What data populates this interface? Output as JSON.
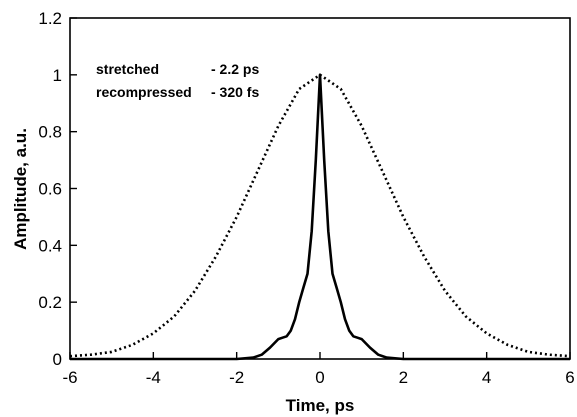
{
  "chart_data": {
    "type": "line",
    "title": "",
    "xlabel": "Time, ps",
    "ylabel": "Amplitude, a.u.",
    "xlim": [
      -6,
      6
    ],
    "ylim": [
      0,
      1.2
    ],
    "x_ticks": [
      -6,
      -4,
      -2,
      0,
      2,
      4,
      6
    ],
    "x_tick_labels": [
      "-6",
      "-4",
      "-2",
      "0",
      "2",
      "4",
      "6"
    ],
    "y_ticks": [
      0,
      0.2,
      0.4,
      0.6,
      0.8,
      1,
      1.2
    ],
    "y_tick_labels": [
      "0",
      "0.2",
      "0.4",
      "0.6",
      "0.8",
      "1",
      "1.2"
    ],
    "grid": false,
    "annotations": [
      {
        "label": "stretched",
        "value": "- 2.2  ps"
      },
      {
        "label": "recompressed",
        "value": "- 320 fs"
      }
    ],
    "series": [
      {
        "style": "dotted",
        "x": [
          -6,
          -5.5,
          -5,
          -4.5,
          -4,
          -3.5,
          -3,
          -2.5,
          -2,
          -1.5,
          -1,
          -0.5,
          0,
          0.5,
          1,
          1.5,
          2,
          2.5,
          3,
          3.5,
          4,
          4.5,
          5,
          5.5,
          6
        ],
        "y": [
          0.01,
          0.015,
          0.025,
          0.05,
          0.09,
          0.15,
          0.24,
          0.36,
          0.5,
          0.66,
          0.82,
          0.95,
          1.0,
          0.95,
          0.82,
          0.66,
          0.5,
          0.36,
          0.24,
          0.15,
          0.09,
          0.05,
          0.025,
          0.015,
          0.01
        ]
      },
      {
        "style": "solid",
        "x": [
          -6,
          -4,
          -2,
          -1.6,
          -1.4,
          -1.2,
          -1.0,
          -0.9,
          -0.8,
          -0.7,
          -0.6,
          -0.5,
          -0.4,
          -0.3,
          -0.2,
          -0.1,
          0,
          0.1,
          0.2,
          0.3,
          0.4,
          0.5,
          0.6,
          0.7,
          0.8,
          0.9,
          1.0,
          1.2,
          1.4,
          1.6,
          2,
          4,
          6
        ],
        "y": [
          0.0,
          0.0,
          0.0,
          0.005,
          0.015,
          0.04,
          0.07,
          0.075,
          0.08,
          0.1,
          0.14,
          0.2,
          0.25,
          0.3,
          0.45,
          0.7,
          1.0,
          0.7,
          0.45,
          0.3,
          0.25,
          0.2,
          0.14,
          0.1,
          0.08,
          0.075,
          0.07,
          0.04,
          0.015,
          0.005,
          0.0,
          0.0,
          0.0
        ]
      }
    ]
  }
}
